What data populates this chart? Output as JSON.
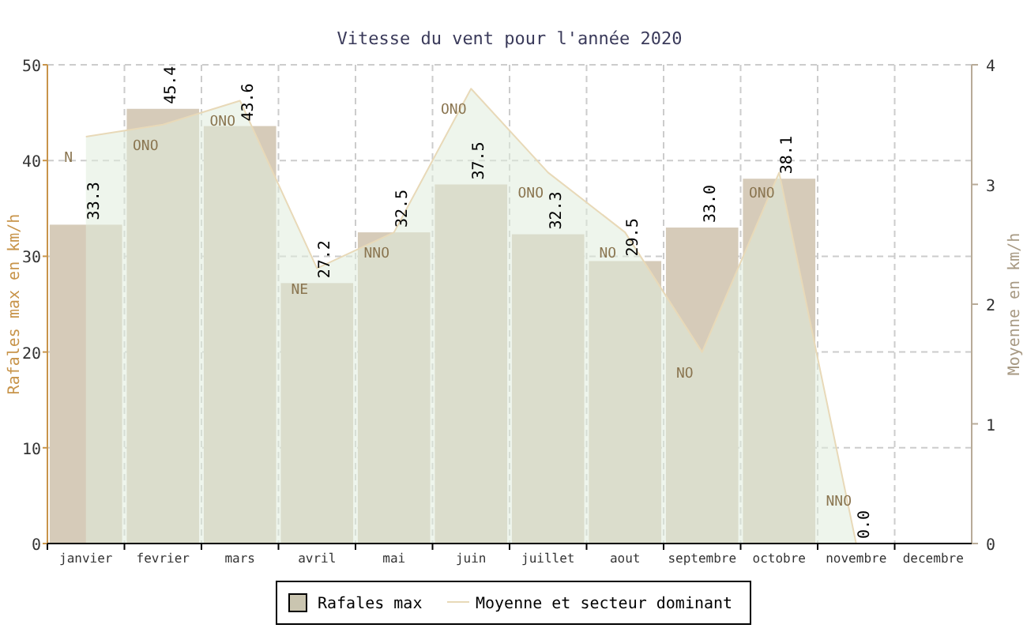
{
  "chart_data": {
    "type": "bar",
    "title": "Vitesse du vent pour l'année 2020",
    "ylabel": "Rafales max en km/h",
    "y2label": "Moyenne en km/h",
    "categories": [
      "janvier",
      "fevrier",
      "mars",
      "avril",
      "mai",
      "juin",
      "juillet",
      "aout",
      "septembre",
      "octobre",
      "novembre",
      "decembre"
    ],
    "series": [
      {
        "name": "Rafales max",
        "color": "#d6cbb9",
        "values": [
          33.3,
          45.4,
          43.6,
          27.2,
          32.5,
          37.5,
          32.3,
          29.5,
          33.0,
          38.1,
          0.0,
          null
        ],
        "value_labels": [
          "33.3",
          "45.4",
          "43.6",
          "27.2",
          "32.5",
          "37.5",
          "32.3",
          "29.5",
          "33.0",
          "38.1",
          "0.0",
          null
        ]
      },
      {
        "name": "Moyenne et secteur dominant",
        "type": "area",
        "axis": "y2",
        "color": "#e8d9b8",
        "values": [
          3.4,
          3.5,
          3.7,
          2.3,
          2.6,
          3.8,
          3.1,
          2.6,
          1.6,
          3.1,
          0,
          null
        ],
        "value_labels": [
          "N",
          "ONO",
          "ONO",
          "NE",
          "NNO",
          "ONO",
          "ONO",
          "NO",
          "NO",
          "ONO",
          "NNO",
          null
        ]
      }
    ],
    "ylim": [
      0,
      50
    ],
    "yticks": [
      0,
      10,
      20,
      30,
      40,
      50
    ],
    "y2lim": [
      0,
      4
    ],
    "y2ticks": [
      0,
      1,
      2,
      3,
      4
    ],
    "grid": true,
    "legend": "bottom"
  }
}
